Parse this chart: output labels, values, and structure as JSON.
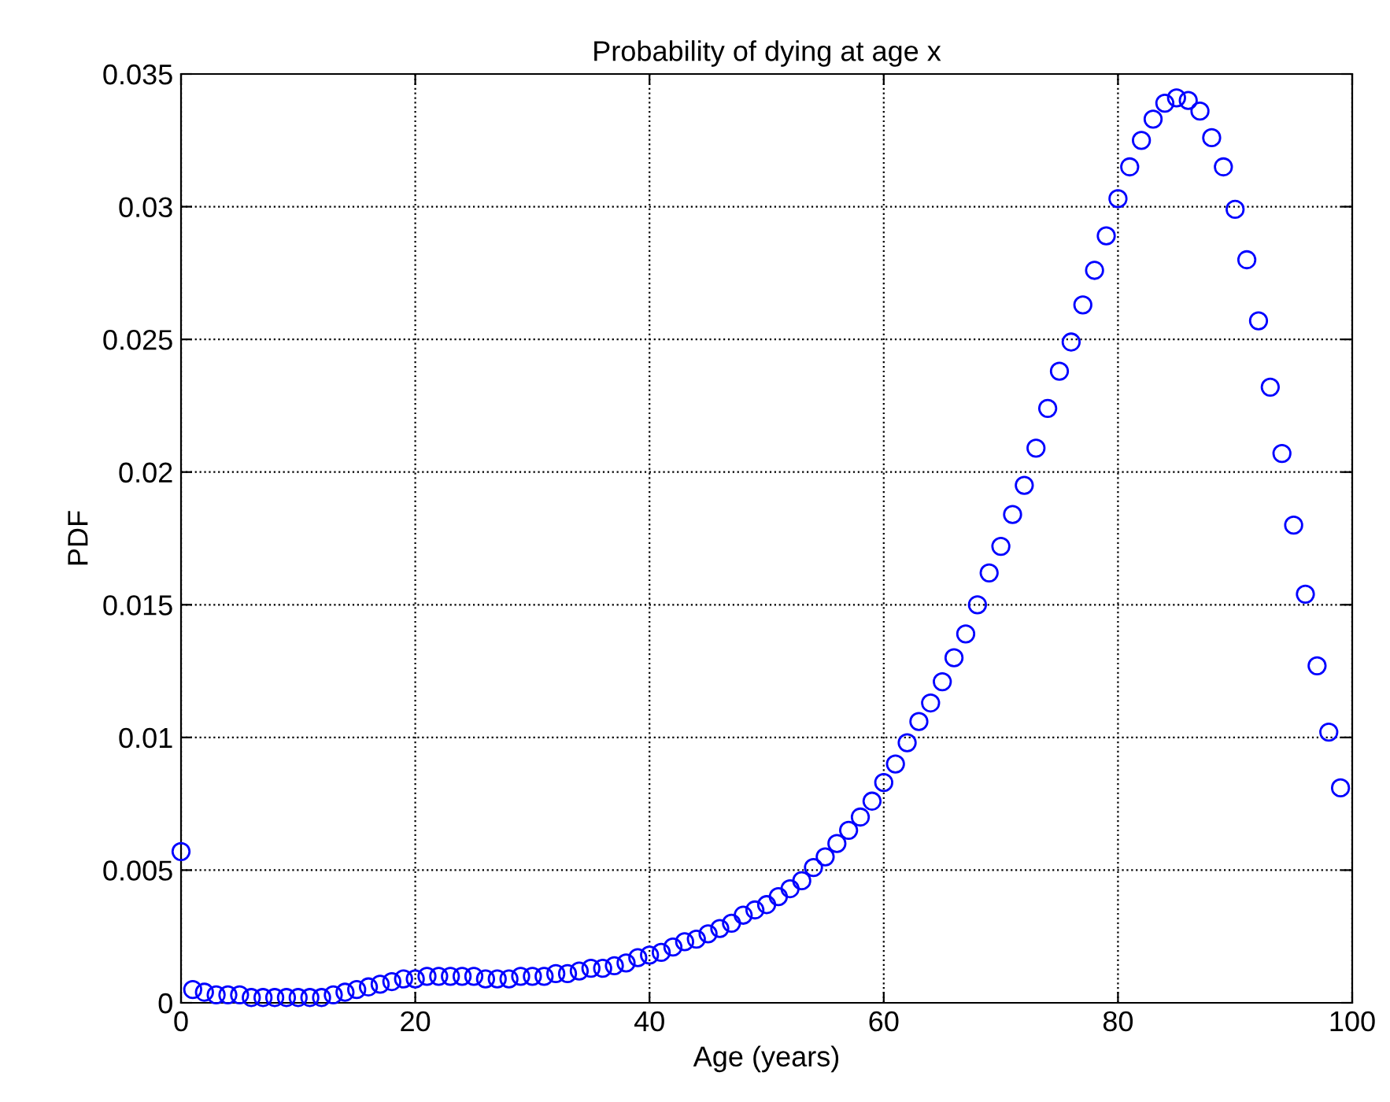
{
  "chart_data": {
    "type": "scatter",
    "title": "Probability of dying at age x",
    "xlabel": "Age (years)",
    "ylabel": "PDF",
    "x": [
      0,
      1,
      2,
      3,
      4,
      5,
      6,
      7,
      8,
      9,
      10,
      11,
      12,
      13,
      14,
      15,
      16,
      17,
      18,
      19,
      20,
      21,
      22,
      23,
      24,
      25,
      26,
      27,
      28,
      29,
      30,
      31,
      32,
      33,
      34,
      35,
      36,
      37,
      38,
      39,
      40,
      41,
      42,
      43,
      44,
      45,
      46,
      47,
      48,
      49,
      50,
      51,
      52,
      53,
      54,
      55,
      56,
      57,
      58,
      59,
      60,
      61,
      62,
      63,
      64,
      65,
      66,
      67,
      68,
      69,
      70,
      71,
      72,
      73,
      74,
      75,
      76,
      77,
      78,
      79,
      80,
      81,
      82,
      83,
      84,
      85,
      86,
      87,
      88,
      89,
      90,
      91,
      92,
      93,
      94,
      95,
      96,
      97,
      98,
      99
    ],
    "series": [
      {
        "color": "#0000ff",
        "values": [
          0.0057,
          0.0005,
          0.0004,
          0.0003,
          0.0003,
          0.0003,
          0.0002,
          0.0002,
          0.0002,
          0.0002,
          0.0002,
          0.0002,
          0.0002,
          0.0003,
          0.0004,
          0.0005,
          0.0006,
          0.0007,
          0.0008,
          0.0009,
          0.0009,
          0.001,
          0.001,
          0.001,
          0.001,
          0.001,
          0.0009,
          0.0009,
          0.0009,
          0.001,
          0.001,
          0.001,
          0.0011,
          0.0011,
          0.0012,
          0.0013,
          0.0013,
          0.0014,
          0.0015,
          0.0017,
          0.0018,
          0.0019,
          0.0021,
          0.0023,
          0.0024,
          0.0026,
          0.0028,
          0.003,
          0.0033,
          0.0035,
          0.0037,
          0.004,
          0.0043,
          0.0046,
          0.0051,
          0.0055,
          0.006,
          0.0065,
          0.007,
          0.0076,
          0.0083,
          0.009,
          0.0098,
          0.0106,
          0.0113,
          0.0121,
          0.013,
          0.0139,
          0.015,
          0.0162,
          0.0172,
          0.0184,
          0.0195,
          0.0209,
          0.0224,
          0.0238,
          0.0249,
          0.0263,
          0.0276,
          0.0289,
          0.0303,
          0.0315,
          0.0325,
          0.0333,
          0.0339,
          0.0341,
          0.034,
          0.0336,
          0.0326,
          0.0315,
          0.0299,
          0.028,
          0.0257,
          0.0232,
          0.0207,
          0.018,
          0.0154,
          0.0127,
          0.0102,
          0.0081
        ]
      }
    ],
    "xlim": [
      0,
      100
    ],
    "xticks": [
      0,
      20,
      40,
      60,
      80,
      100
    ],
    "ylim": [
      0,
      0.035
    ],
    "yticks": [
      0,
      0.005,
      0.01,
      0.015,
      0.02,
      0.025,
      0.03,
      0.035
    ],
    "grid": true,
    "marker": "circle"
  }
}
